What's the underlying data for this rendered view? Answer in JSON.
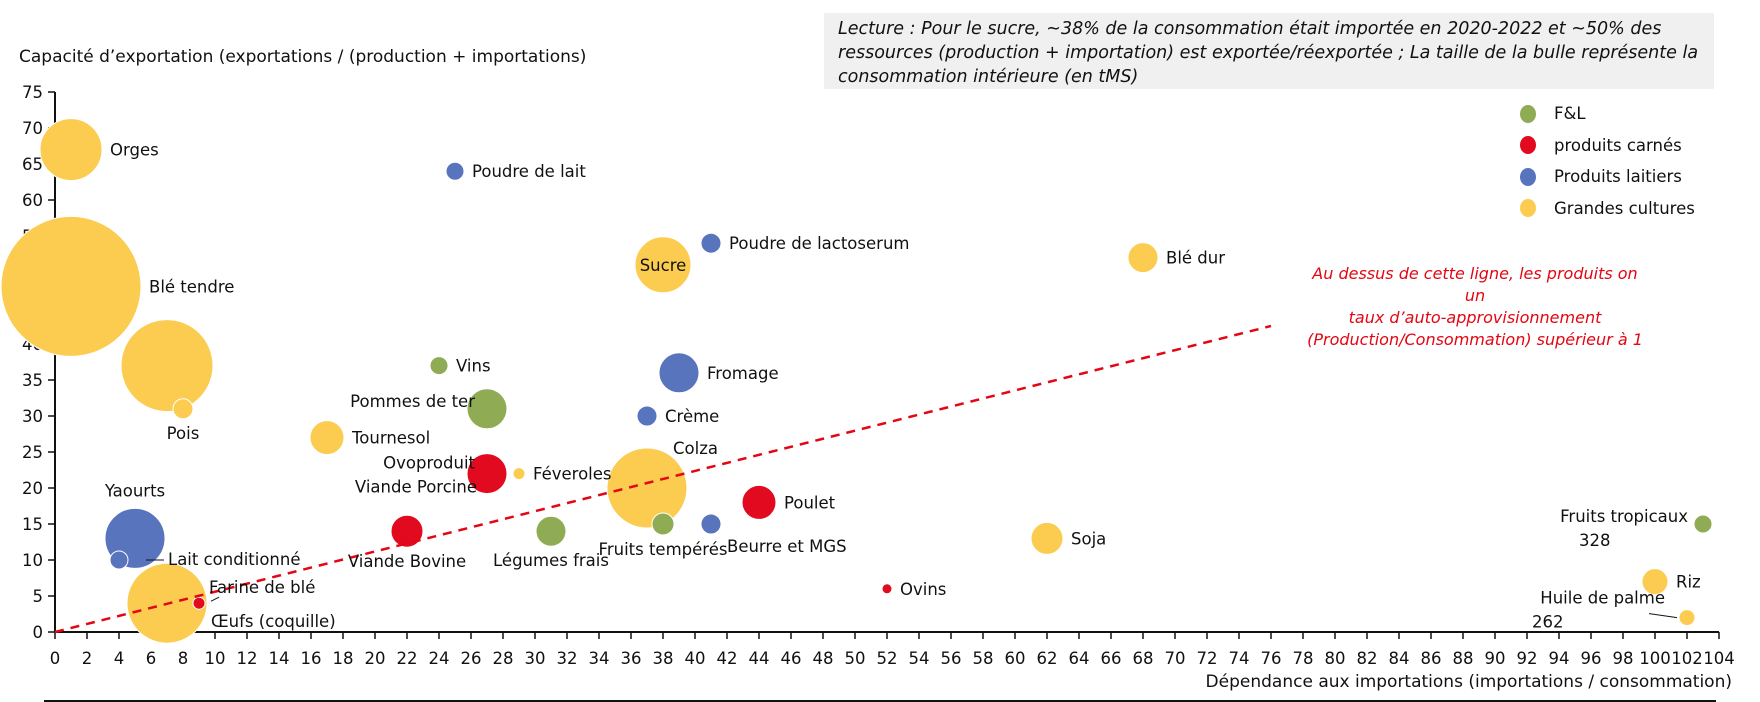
{
  "note": "Lecture : Pour le sucre, ~38% de la consommation était importée en 2020-2022 et ~50% des ressources (production + importation) est exportée/réexportée ; La taille de la bulle représente la consommation intérieure (en tMS)",
  "annotation_line": [
    "Au dessus de cette ligne, les produits on un",
    "taux d’auto-approvisionnement",
    "(Production/Consommation) supérieur à 1"
  ],
  "colors": {
    "F&L": "#8fac55",
    "produits carnés": "#e10a1e",
    "Produits laitiers": "#5874bd",
    "Grandes cultures": "#fbcc50",
    "line": "#e30613"
  },
  "chart_data": {
    "type": "scatter",
    "subtype": "bubble",
    "ylabel": "Capacité d’exportation (exportations / (production + importations)",
    "xlabel": "Dépendance aux importations (importations / consommation)",
    "xlim": [
      0,
      104
    ],
    "ylim": [
      0,
      75
    ],
    "xticks": [
      0,
      2,
      4,
      6,
      8,
      10,
      12,
      14,
      16,
      18,
      20,
      22,
      24,
      26,
      28,
      30,
      32,
      34,
      36,
      38,
      40,
      42,
      44,
      46,
      48,
      50,
      52,
      54,
      56,
      58,
      60,
      62,
      64,
      66,
      68,
      70,
      72,
      74,
      76,
      78,
      80,
      82,
      84,
      86,
      88,
      90,
      92,
      94,
      96,
      98,
      100,
      102,
      104
    ],
    "yticks": [
      0,
      5,
      10,
      15,
      20,
      25,
      30,
      35,
      40,
      45,
      50,
      55,
      60,
      65,
      70,
      75
    ],
    "grid": false,
    "legend": {
      "placement": "top-right",
      "entries": [
        "F&L",
        "produits carnés",
        "Produits laitiers",
        "Grandes cultures"
      ]
    },
    "reference_line": {
      "from": [
        0,
        0
      ],
      "to": [
        76,
        42.5
      ],
      "style": "dashed"
    },
    "points": [
      {
        "label": "Orges",
        "x": 1,
        "y": 67,
        "size": 31,
        "group": "Grandes cultures",
        "pos": "right"
      },
      {
        "label": "Blé tendre",
        "x": 1,
        "y": 48,
        "size": 70,
        "group": "Grandes cultures",
        "pos": "right"
      },
      {
        "label": "",
        "x": 7,
        "y": 37,
        "size": 46,
        "group": "Grandes cultures",
        "pos": "none"
      },
      {
        "label": "Pois",
        "x": 8,
        "y": 31,
        "size": 10,
        "group": "Grandes cultures",
        "pos": "below"
      },
      {
        "label": "Poudre de lait",
        "x": 25,
        "y": 64,
        "size": 9,
        "group": "Produits laitiers",
        "pos": "right"
      },
      {
        "label": "Sucre",
        "x": 38,
        "y": 51,
        "size": 28,
        "group": "Grandes cultures",
        "pos": "center"
      },
      {
        "label": "Poudre de lactoserum",
        "x": 41,
        "y": 54,
        "size": 10,
        "group": "Produits laitiers",
        "pos": "right"
      },
      {
        "label": "Blé dur",
        "x": 68,
        "y": 52,
        "size": 15,
        "group": "Grandes cultures",
        "pos": "right"
      },
      {
        "label": "Vins",
        "x": 24,
        "y": 37,
        "size": 9,
        "group": "F&L",
        "pos": "right"
      },
      {
        "label": "Fromage",
        "x": 39,
        "y": 36,
        "size": 20,
        "group": "Produits laitiers",
        "pos": "right"
      },
      {
        "label": "Pommes de ter",
        "x": 27,
        "y": 31,
        "size": 20,
        "group": "F&L",
        "pos": "topleft"
      },
      {
        "label": "Crème",
        "x": 37,
        "y": 30,
        "size": 10,
        "group": "Produits laitiers",
        "pos": "right"
      },
      {
        "label": "Tournesol",
        "x": 17,
        "y": 27,
        "size": 17,
        "group": "Grandes cultures",
        "pos": "right"
      },
      {
        "label": "Ovoproduit",
        "x": 27,
        "y": 22.3,
        "size": 3,
        "group": "produits carnés",
        "pos": "upleft"
      },
      {
        "label": "Viande Porcine",
        "x": 27,
        "y": 22,
        "size": 20,
        "group": "produits carnés",
        "pos": "downleft"
      },
      {
        "label": "Féveroles",
        "x": 29,
        "y": 22,
        "size": 6,
        "group": "Grandes cultures",
        "pos": "right"
      },
      {
        "label": "Colza",
        "x": 37,
        "y": 20,
        "size": 40,
        "group": "Grandes cultures",
        "pos": "topright"
      },
      {
        "label": "Poulet",
        "x": 44,
        "y": 18,
        "size": 17,
        "group": "produits carnés",
        "pos": "right"
      },
      {
        "label": "Yaourts",
        "x": 5,
        "y": 13,
        "size": 30,
        "group": "Produits laitiers",
        "pos": "above"
      },
      {
        "label": "Lait conditionné",
        "x": 4,
        "y": 10,
        "size": 9,
        "group": "Produits laitiers",
        "pos": "farright"
      },
      {
        "label": "Viande Bovine",
        "x": 22,
        "y": 14,
        "size": 16,
        "group": "produits carnés",
        "pos": "below"
      },
      {
        "label": "Légumes frais",
        "x": 31,
        "y": 14,
        "size": 15,
        "group": "F&L",
        "pos": "below"
      },
      {
        "label": "Fruits tempérés",
        "x": 38,
        "y": 15,
        "size": 11,
        "group": "F&L",
        "pos": "below"
      },
      {
        "label": "Beurre et MGS",
        "x": 41,
        "y": 15,
        "size": 10,
        "group": "Produits laitiers",
        "pos": "belowright"
      },
      {
        "label": "Soja",
        "x": 62,
        "y": 13,
        "size": 16,
        "group": "Grandes cultures",
        "pos": "right"
      },
      {
        "label": "Ovins",
        "x": 52,
        "y": 6,
        "size": 5,
        "group": "produits carnés",
        "pos": "right"
      },
      {
        "label": "Farine de blé",
        "x": 7,
        "y": 4,
        "size": 40,
        "group": "Grandes cultures",
        "pos": "farine"
      },
      {
        "label": "Œufs (coquille)",
        "x": 9,
        "y": 4,
        "size": 6,
        "group": "produits carnés",
        "pos": "belowright"
      },
      {
        "label": "Fruits tropicaux",
        "label2": "328",
        "x": 103,
        "y": 15,
        "size": 9,
        "group": "F&L",
        "pos": "twoleft"
      },
      {
        "label": "Riz",
        "x": 100,
        "y": 7,
        "size": 13,
        "group": "Grandes cultures",
        "pos": "right"
      },
      {
        "label": "Huile de palme",
        "label2": "262",
        "x": 102,
        "y": 2,
        "size": 8,
        "group": "Grandes cultures",
        "pos": "twoleftlow"
      }
    ]
  }
}
